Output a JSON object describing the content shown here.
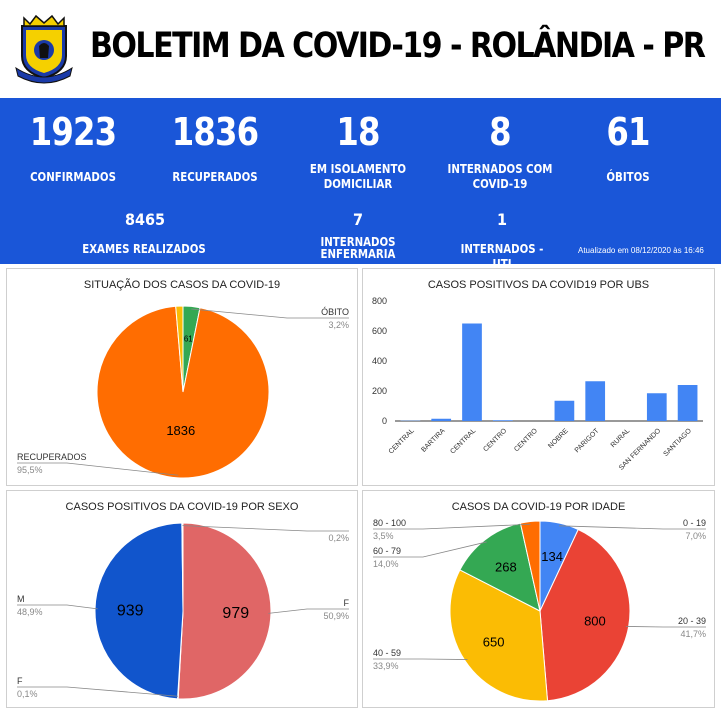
{
  "header": {
    "title": "BOLETIM DA COVID-19 - ROLÂNDIA - PR"
  },
  "stats": {
    "confirmados": {
      "value": "1923",
      "label": "CONFIRMADOS"
    },
    "recuperados": {
      "value": "1836",
      "label": "RECUPERADOS"
    },
    "isolamento": {
      "value": "18",
      "label1": "EM ISOLAMENTO",
      "label2": "DOMICILIAR"
    },
    "internados": {
      "value": "8",
      "label1": "INTERNADOS COM",
      "label2": "COVID-19"
    },
    "obitos": {
      "value": "61",
      "label": "ÓBITOS"
    },
    "exames": {
      "value": "8465",
      "label": "EXAMES REALIZADOS"
    },
    "enfermaria": {
      "value": "7",
      "label1": "INTERNADOS",
      "label2": "ENFERMARIA"
    },
    "uti": {
      "value": "1",
      "label": "INTERNADOS - UTI"
    },
    "updated": "Atualizado em 08/12/2020 às 16:46"
  },
  "colors": {
    "band": "#1a56d8",
    "orange": "#ff6d01",
    "green": "#34a853",
    "blue": "#1155cc",
    "red": "#e06666",
    "lightblue": "#4285f4",
    "redAge": "#ea4335",
    "yellow": "#fbbc04"
  },
  "chart_data": [
    {
      "type": "pie",
      "title": "SITUAÇÃO DOS CASOS DA COVID-19",
      "slices": [
        {
          "label": "ÓBITO",
          "value": 61,
          "percent": "3,2%",
          "color": "#34a853",
          "data_label": "61"
        },
        {
          "label": "RECUPERADOS",
          "value": 1836,
          "percent": "95,5%",
          "color": "#ff6d01",
          "data_label": "1836"
        },
        {
          "label": "",
          "value": 26,
          "percent": "",
          "color": "#fbbc04",
          "data_label": ""
        }
      ]
    },
    {
      "type": "bar",
      "title": "CASOS POSITIVOS DA COVID19 POR UBS",
      "categories": [
        "CENTRAL",
        "BARTIRA",
        "CENTRAL",
        "CENTRO",
        "CENTRO",
        "NOBRE",
        "PARIGOT",
        "RURAL",
        "SAN FERNANDO",
        "SANTIAGO"
      ],
      "values": [
        2,
        15,
        650,
        5,
        0,
        135,
        265,
        0,
        185,
        240
      ],
      "ylim": [
        0,
        800
      ],
      "yticks": [
        "0",
        "200",
        "400",
        "600",
        "800"
      ],
      "color": "#4285f4",
      "grid": false
    },
    {
      "type": "pie",
      "title": "CASOS POSITIVOS DA COVID-19 POR SEXO",
      "slices": [
        {
          "label": "F",
          "value": 979,
          "percent": "50,9%",
          "color": "#e06666",
          "data_label": "979"
        },
        {
          "label": "F",
          "value": 2,
          "percent": "0,1%",
          "color": "#ffffff",
          "data_label": ""
        },
        {
          "label": "M",
          "value": 939,
          "percent": "48,9%",
          "color": "#1155cc",
          "data_label": "939"
        },
        {
          "label": "",
          "value": 4,
          "percent": "0,2%",
          "color": "#ffffff",
          "data_label": ""
        }
      ]
    },
    {
      "type": "pie",
      "title": "CASOS DA COVID-19 POR IDADE",
      "slices": [
        {
          "label": "0 - 19",
          "value": 134,
          "percent": "7,0%",
          "color": "#4285f4",
          "data_label": "134"
        },
        {
          "label": "20 - 39",
          "value": 800,
          "percent": "41,7%",
          "color": "#ea4335",
          "data_label": "800"
        },
        {
          "label": "40 - 59",
          "value": 650,
          "percent": "33,9%",
          "color": "#fbbc04",
          "data_label": "650"
        },
        {
          "label": "60 - 79",
          "value": 268,
          "percent": "14,0%",
          "color": "#34a853",
          "data_label": "268"
        },
        {
          "label": "80 - 100",
          "value": 67,
          "percent": "3,5%",
          "color": "#ff6d01",
          "data_label": ""
        }
      ]
    }
  ]
}
